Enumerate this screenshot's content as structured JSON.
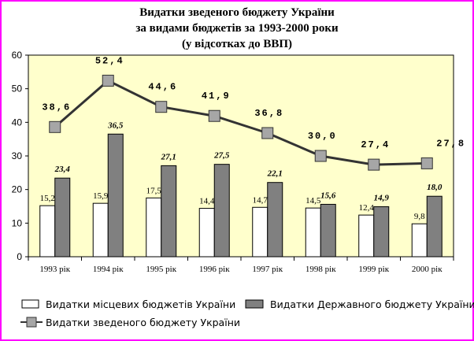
{
  "chart_data": {
    "type": "bar",
    "title_lines": [
      "Видатки зведеного бюджету України",
      "за видами бюджетів за 1993-2000 роки",
      "(у відсотках до ВВП)"
    ],
    "categories": [
      "1993 рік",
      "1994 рік",
      "1995 рік",
      "1996 рік",
      "1997 рік",
      "1998 рік",
      "1999 рік",
      "2000 рік"
    ],
    "ylim": [
      0,
      60
    ],
    "yticks": [
      0,
      10,
      20,
      30,
      40,
      50,
      60
    ],
    "grid": false,
    "legend_position": "bottom",
    "series": [
      {
        "name": "Видатки місцевих бюджетів України",
        "kind": "bar",
        "color": "#ffffff",
        "values": [
          15.2,
          15.9,
          17.5,
          14.4,
          14.7,
          14.5,
          12.4,
          9.8
        ],
        "labels": [
          "15,2",
          "15,9",
          "17,5",
          "14,4",
          "14,7",
          "14,5",
          "12,4",
          "9,8"
        ]
      },
      {
        "name": "Видатки Державного бюджету України",
        "kind": "bar",
        "color": "#808080",
        "values": [
          23.4,
          36.5,
          27.1,
          27.5,
          22.1,
          15.6,
          14.9,
          18.0
        ],
        "labels": [
          "23,4",
          "36,5",
          "27,1",
          "27,5",
          "22,1",
          "15,6",
          "14,9",
          "18,0"
        ]
      },
      {
        "name": "Видатки зведеного бюджету України",
        "kind": "line",
        "color": "#333333",
        "marker_color": "#a6a6a6",
        "values": [
          38.6,
          52.4,
          44.6,
          41.9,
          36.8,
          30.0,
          27.4,
          27.8
        ],
        "labels": [
          "38,6",
          "52,4",
          "44,6",
          "41,9",
          "36,8",
          "30,0",
          "27,4",
          "27,8"
        ]
      }
    ],
    "plot_background": "#ffffcc"
  }
}
